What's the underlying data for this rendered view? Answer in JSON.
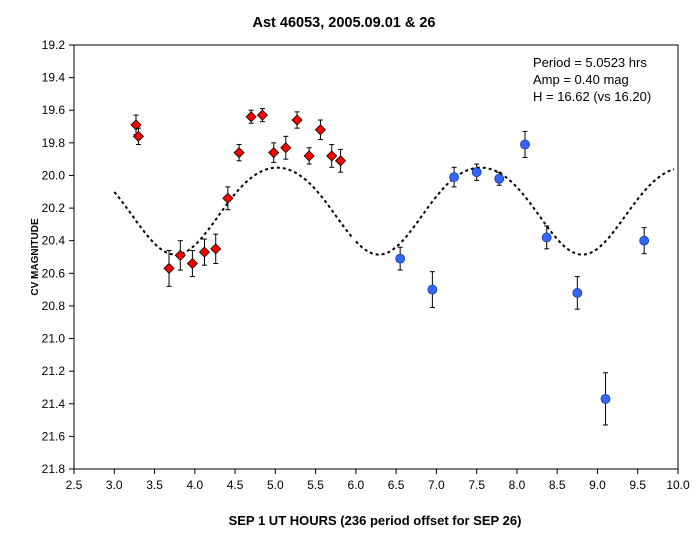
{
  "chart_data": {
    "type": "scatter",
    "title": "Ast 46053, 2005.09.01 & 26",
    "xlabel": "SEP 1 UT HOURS (236 period offset for SEP 26)",
    "ylabel": "CV MAGNITUDE",
    "xlim": [
      2.5,
      10.0
    ],
    "ylim": [
      19.2,
      21.8
    ],
    "y_inverted": true,
    "x_ticks": [
      "2.5",
      "3.0",
      "3.5",
      "4.0",
      "4.5",
      "5.0",
      "5.5",
      "6.0",
      "6.5",
      "7.0",
      "7.5",
      "8.0",
      "8.5",
      "9.0",
      "9.5",
      "10.0"
    ],
    "y_ticks": [
      "19.2",
      "19.4",
      "19.6",
      "19.8",
      "20.0",
      "20.2",
      "20.4",
      "20.6",
      "20.8",
      "21.0",
      "21.2",
      "21.4",
      "21.6",
      "21.8"
    ],
    "grid": false,
    "annotations": [
      "Period = 5.0523 hrs",
      "Amp = 0.40 mag",
      "H = 16.62 (vs 16.20)"
    ],
    "colors": {
      "sep1": "#ff0000",
      "sep26": "#3366ff",
      "fit": "#000000"
    },
    "series": [
      {
        "marker": "diamond",
        "points": [
          {
            "x": 3.27,
            "y": 19.69,
            "err": 0.06
          },
          {
            "x": 3.3,
            "y": 19.76,
            "err": 0.05
          },
          {
            "x": 3.68,
            "y": 20.57,
            "err": 0.11
          },
          {
            "x": 3.82,
            "y": 20.49,
            "err": 0.09
          },
          {
            "x": 3.97,
            "y": 20.54,
            "err": 0.08
          },
          {
            "x": 4.12,
            "y": 20.47,
            "err": 0.08
          },
          {
            "x": 4.26,
            "y": 20.45,
            "err": 0.09
          },
          {
            "x": 4.41,
            "y": 20.14,
            "err": 0.07
          },
          {
            "x": 4.55,
            "y": 19.86,
            "err": 0.05
          },
          {
            "x": 4.7,
            "y": 19.64,
            "err": 0.04
          },
          {
            "x": 4.84,
            "y": 19.63,
            "err": 0.04
          },
          {
            "x": 4.98,
            "y": 19.86,
            "err": 0.06
          },
          {
            "x": 5.13,
            "y": 19.83,
            "err": 0.07
          },
          {
            "x": 5.27,
            "y": 19.66,
            "err": 0.05
          },
          {
            "x": 5.42,
            "y": 19.88,
            "err": 0.05
          },
          {
            "x": 5.56,
            "y": 19.72,
            "err": 0.06
          },
          {
            "x": 5.7,
            "y": 19.88,
            "err": 0.07
          },
          {
            "x": 5.81,
            "y": 19.91,
            "err": 0.07
          }
        ]
      },
      {
        "marker": "circle",
        "points": [
          {
            "x": 6.55,
            "y": 20.51,
            "err": 0.07
          },
          {
            "x": 6.95,
            "y": 20.7,
            "err": 0.11
          },
          {
            "x": 7.22,
            "y": 20.01,
            "err": 0.06
          },
          {
            "x": 7.5,
            "y": 19.98,
            "err": 0.05
          },
          {
            "x": 7.78,
            "y": 20.02,
            "err": 0.04
          },
          {
            "x": 8.1,
            "y": 19.81,
            "err": 0.08
          },
          {
            "x": 8.37,
            "y": 20.38,
            "err": 0.07
          },
          {
            "x": 8.75,
            "y": 20.72,
            "err": 0.1
          },
          {
            "x": 9.1,
            "y": 21.37,
            "err": 0.16
          },
          {
            "x": 9.58,
            "y": 20.4,
            "err": 0.08
          }
        ]
      }
    ],
    "fit_curve": {
      "style": "dashed",
      "segments": [
        {
          "x_start": 3.0,
          "x_end": 5.95
        },
        {
          "x_start": 6.0,
          "x_end": 9.95
        }
      ],
      "model": {
        "mean": 20.2,
        "amp": 0.2666,
        "period_hrs": 2.52615,
        "phase_ref_x": 3.76,
        "secondary": 0.07
      }
    }
  }
}
